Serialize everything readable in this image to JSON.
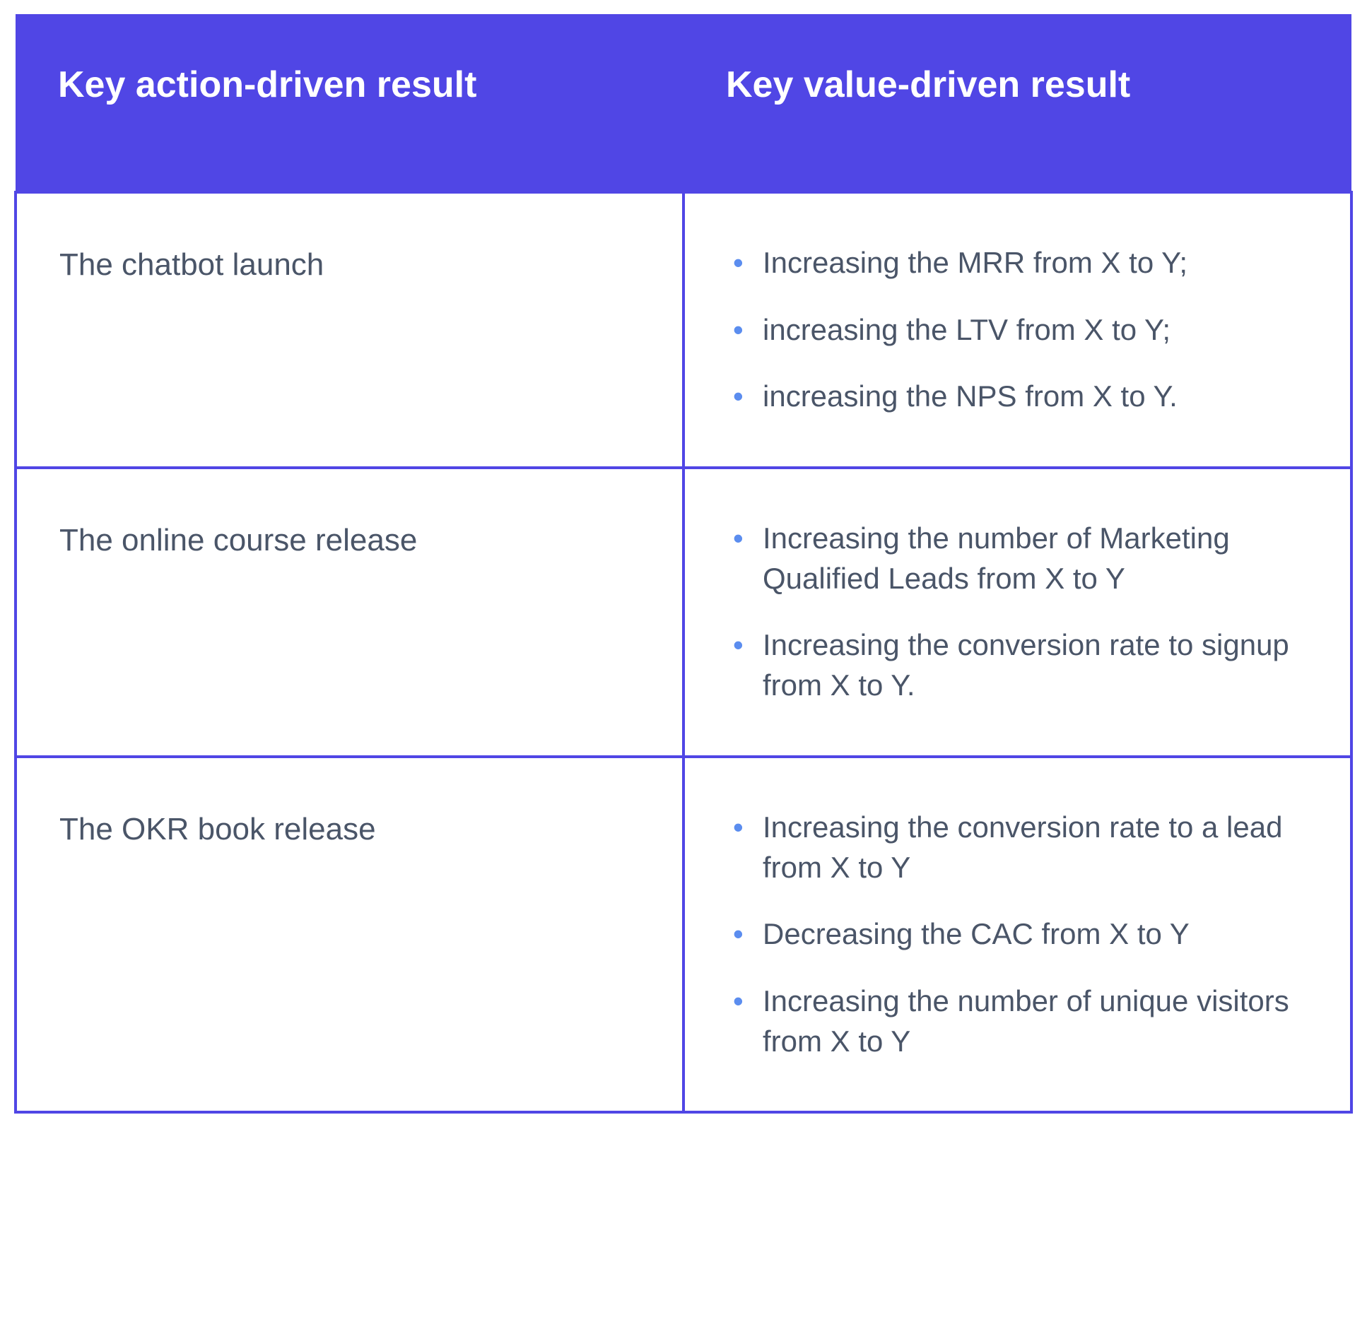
{
  "table": {
    "type": "table",
    "header_bg": "#5046e5",
    "header_text_color": "#ffffff",
    "border_color": "#5046e5",
    "body_text_color": "#4a5568",
    "bullet_color": "#5b8def",
    "header_fontsize": 52,
    "body_fontsize": 44,
    "columns": [
      "Key action-driven result",
      "Key value-driven result"
    ],
    "rows": [
      {
        "action": "The chatbot launch",
        "values": [
          "Increasing the MRR from X to Y;",
          "increasing the LTV from X to Y;",
          "increasing the NPS from X to Y."
        ]
      },
      {
        "action": "The online course release",
        "values": [
          "Increasing the number of Marketing Qualified Leads from X to Y",
          "Increasing the conversion rate to signup from X to Y."
        ]
      },
      {
        "action": "The OKR book release",
        "values": [
          "Increasing the conversion rate to a lead from X to Y",
          "Decreasing the CAC from X to Y",
          "Increasing the number of unique visitors from X to Y"
        ]
      }
    ]
  }
}
